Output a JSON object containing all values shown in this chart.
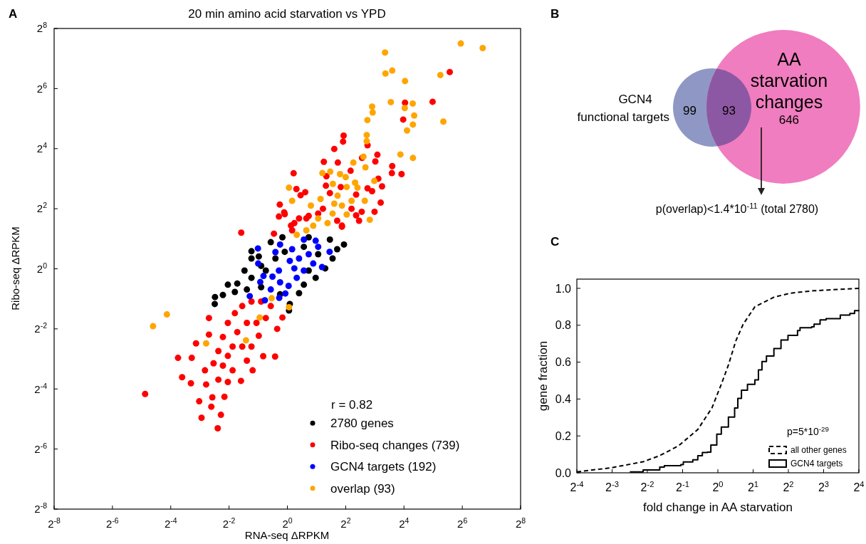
{
  "chart_data": [
    {
      "type": "scatter",
      "title": "20 min amino acid starvation vs YPD",
      "xlabel": "RNA-seq ΔRPKM",
      "ylabel": "Ribo-seq ΔRPKM",
      "annotations": [
        "A",
        "r = 0.82"
      ],
      "log": "xy",
      "marker": "circle",
      "legend": "bottom right",
      "xlim": [
        0.00390625,
        256
      ],
      "ylim": [
        0.00390625,
        256
      ],
      "xticks": [
        {
          "value": 0.00390625,
          "label": "2$^{-8}$"
        },
        {
          "value": 0.015625,
          "label": "2$^{-6}$"
        },
        {
          "value": 0.0625,
          "label": "2$^{-4}$"
        },
        {
          "value": 0.25,
          "label": "2$^{-2}$"
        },
        {
          "value": 1,
          "label": "2$^{0}$"
        },
        {
          "value": 4,
          "label": "2$^{2}$"
        },
        {
          "value": 16,
          "label": "2$^{4}$"
        },
        {
          "value": 64,
          "label": "2$^{6}$"
        },
        {
          "value": 256,
          "label": "2$^{8}$"
        }
      ],
      "yticks": [
        {
          "value": 0.00390625,
          "label": "2$^{-8}$"
        },
        {
          "value": 0.015625,
          "label": "2$^{-6}$"
        },
        {
          "value": 0.0625,
          "label": "2$^{-4}$"
        },
        {
          "value": 0.25,
          "label": "2$^{-2}$"
        },
        {
          "value": 1,
          "label": "2$^{0}$"
        },
        {
          "value": 4,
          "label": "2$^{2}$"
        },
        {
          "value": 16,
          "label": "2$^{4}$"
        },
        {
          "value": 64,
          "label": "2$^{6}$"
        },
        {
          "value": 256,
          "label": "2$^{8}$"
        }
      ],
      "series": [
        {
          "name": "2780 genes",
          "color": "#000000",
          "x": [
            0.179,
            0.178,
            0.216,
            0.243,
            0.304,
            0.361,
            0.426,
            0.507,
            0.674,
            0.889,
            1.66,
            2.75,
            3.27,
            3.84,
            2.93,
            2.46,
            1.96,
            1.48,
            1.32,
            1.06,
            1.04,
            0.841,
            0.536,
            0.426,
            0.599,
            0.753,
            0.536,
            1.66,
            2.08,
            1.48,
            0.94,
            0.382,
            0.287,
            0.426
          ],
          "values": [
            0.521,
            0.444,
            0.547,
            0.693,
            0.712,
            0.959,
            1.5,
            1.33,
            1.85,
            2.07,
            2.07,
            1.96,
            1.57,
            1.75,
            1.27,
            1.01,
            0.812,
            0.693,
            0.57,
            0.444,
            0.382,
            0.555,
            0.655,
            0.812,
            0.959,
            1.27,
            1.07,
            0.959,
            1.4,
            1.66,
            1.48,
            0.62,
            0.586,
            1.27
          ]
        },
        {
          "name": "Ribo-seq changes (739)",
          "color": "#ff0000",
          "x": [
            47.5,
            31.6,
            16.4,
            15.7,
            3.81,
            3.76,
            3.05,
            6.73,
            8.5,
            8.1,
            2.38,
            3.32,
            5.9,
            12.1,
            12,
            15.1,
            1.16,
            4.5,
            2.53,
            8.7,
            9.5,
            2.5,
            1.24,
            1.53,
            1.37,
            6.73,
            7.5,
            2.75,
            3.56,
            9.2,
            0.835,
            0.927,
            0.818,
            7.95,
            5.86,
            5.13,
            5.5,
            0.727,
            3.66,
            1.32,
            1.09,
            1.66,
            2.33,
            4.6,
            5.13,
            0.334,
            0.94,
            0.034,
            0.0743,
            0.0819,
            0.101,
            0.114,
            0.103,
            0.123,
            0.13,
            0.164,
            0.191,
            0.206,
            0.224,
            0.168,
            0.155,
            0.155,
            0.141,
            0.145,
            0.194,
            0.243,
            0.332,
            0.382,
            0.438,
            0.563,
            0.747,
            0.785,
            0.889,
            0.507,
            0.599,
            0.287,
            0.243,
            0.342,
            0.426,
            0.536,
            0.674,
            0.304,
            0.216,
            0.272,
            0.243,
            0.342,
            0.194,
            0.173,
            0.216,
            0.426,
            0.48,
            0.382,
            0.272,
            1.18,
            1.57,
            2.08,
            1.12,
            3.27,
            3.66
          ],
          "values": [
            93.7,
            47.2,
            46.2,
            31.3,
            21.6,
            18.8,
            15.9,
            17.3,
            13.9,
            11.9,
            11.8,
            11.6,
            12.9,
            10.7,
            9.1,
            8.9,
            9.06,
            9.6,
            8.46,
            8,
            6.7,
            6.8,
            6.3,
            5.86,
            5.46,
            6.4,
            6,
            5.74,
            6.6,
            4.6,
            4.4,
            3.68,
            3.34,
            3.73,
            3.73,
            3.43,
            3.03,
            2.25,
            2.64,
            3.2,
            2.71,
            3.39,
            4,
            4,
            5.54,
            2.3,
            3.53,
            0.0556,
            0.128,
            0.0819,
            0.0713,
            0.179,
            0.128,
            0.047,
            0.0321,
            0.0415,
            0.0252,
            0.0344,
            0.0522,
            0.0515,
            0.321,
            0.219,
            0.0961,
            0.0694,
            0.0775,
            0.0733,
            0.0753,
            0.12,
            0.0961,
            0.133,
            0.132,
            0.25,
            0.325,
            0.213,
            0.321,
            0.359,
            0.287,
            0.423,
            0.47,
            0.47,
            0.423,
            0.232,
            0.207,
            0.166,
            0.134,
            0.166,
            0.15,
            0.113,
            0.107,
            0.166,
            0.287,
            0.287,
            0.0961,
            2.87,
            3.2,
            3.58,
            2.43,
            3.03,
            2.71
          ]
        },
        {
          "name": "GCN4 targets (192)",
          "color": "#0000ff",
          "x": [
            0.497,
            0.5,
            0.753,
            0.841,
            0.567,
            0.525,
            0.702,
            0.818,
            0.674,
            0.841,
            1.03,
            0.953,
            0.824,
            0.586,
            0.409,
            1.12,
            1.32,
            1.18,
            1.48,
            1.66,
            1.85,
            2.08,
            2.28,
            2.73,
            1.96,
            1.25,
            1.48,
            1.06
          ],
          "values": [
            1.6,
            1.13,
            1.47,
            1.75,
            0.847,
            0.737,
            0.835,
            0.959,
            0.62,
            0.732,
            0.674,
            0.566,
            0.511,
            0.483,
            0.532,
            1.57,
            1.27,
            1.01,
            0.959,
            1.4,
            1.13,
            1.66,
            1.04,
            1.48,
            1.91,
            0.812,
            1.96,
            1.2
          ]
        },
        {
          "name": "overlap (93)",
          "color": "#ffa500",
          "x": [
            61.8,
            104,
            10.2,
            10.3,
            12.1,
            16.4,
            38,
            11.7,
            19.7,
            16.3,
            7.5,
            7.6,
            20.4,
            6.7,
            19.8,
            40.8,
            17.2,
            6.6,
            6.6,
            14.7,
            19.8,
            6.1,
            4.8,
            6.4,
            2.3,
            2.77,
            3.5,
            4,
            7.9,
            1.04,
            2.95,
            4.1,
            5,
            5.3,
            2.2,
            3.3,
            3.05,
            3.66,
            4.6,
            6.3,
            7.1,
            4.1,
            2.08,
            2.6,
            1.85,
            1.57,
            1.25,
            2.93,
            0.057,
            0.041,
            0.145,
            0.374,
            0.518,
            0.688,
            1.04,
            1.75,
            1.12
          ],
          "values": [
            181,
            163,
            147,
            90.5,
            97,
            76.1,
            87.4,
            46.8,
            45.3,
            40.8,
            42.2,
            36.8,
            34.3,
            30.9,
            27.9,
            29.9,
            24.3,
            21.9,
            19,
            14,
            12.9,
            13.3,
            11.6,
            10.4,
            9.1,
            9.4,
            8.9,
            8.3,
            7.6,
            6.5,
            7.1,
            6.6,
            7.3,
            6.5,
            5,
            5.4,
            4.5,
            4.3,
            4.8,
            4.8,
            3.1,
            3.5,
            3.2,
            2.87,
            2.7,
            2.43,
            2.19,
            3.58,
            0.349,
            0.266,
            0.179,
            0.192,
            0.325,
            0.507,
            0.412,
            4.3,
            4.8
          ]
        }
      ]
    },
    {
      "type": "other",
      "annotations": [
        "B",
        "p(overlap)<1.4*10$^{-11}$ (total 2780)"
      ],
      "categories": [
        "GCN4 functional targets",
        null,
        "AA starvation changes"
      ],
      "data_labels": true,
      "values": [
        99,
        93,
        646
      ],
      "colors": [
        "#8f98c4",
        "#8d58a3",
        "#f07dbf"
      ]
    },
    {
      "type": "step",
      "xlabel": "fold change in AA starvation",
      "ylabel": "gene fraction",
      "annotations": [
        "C",
        "p=5*10$^{-29}$"
      ],
      "log": "x",
      "legend": "bottom right",
      "xlim": [
        0.0625,
        16
      ],
      "ylim": [
        0,
        1.05
      ],
      "xticks": [
        {
          "value": 0.0625,
          "label": "2$^{-4}$"
        },
        {
          "value": 0.125,
          "label": "2$^{-3}$"
        },
        {
          "value": 0.25,
          "label": "2$^{-2}$"
        },
        {
          "value": 0.5,
          "label": "2$^{-1}$"
        },
        {
          "value": 1,
          "label": "2$^{0}$"
        },
        {
          "value": 2,
          "label": "2$^{1}$"
        },
        {
          "value": 4,
          "label": "2$^{2}$"
        },
        {
          "value": 8,
          "label": "2$^{3}$"
        },
        {
          "value": 16,
          "label": "2$^{4}$"
        }
      ],
      "yticks": [
        {
          "value": 0,
          "label": "0.0"
        },
        {
          "value": 0.2,
          "label": "0.2"
        },
        {
          "value": 0.4,
          "label": "0.4"
        },
        {
          "value": 0.6,
          "label": "0.6"
        },
        {
          "value": 0.8,
          "label": "0.8"
        },
        {
          "value": 1,
          "label": "1.0"
        }
      ],
      "series": [
        {
          "name": "all other genes",
          "type": "line",
          "line_style": "dashed",
          "color": "#000000",
          "x": [
            0.0625,
            0.125,
            0.23,
            0.319,
            0.463,
            0.674,
            0.889,
            1.07,
            1.23,
            1.42,
            1.64,
            2.07,
            3.01,
            4.17,
            6.63,
            16
          ],
          "values": [
            0.005,
            0.028,
            0.06,
            0.093,
            0.147,
            0.235,
            0.351,
            0.48,
            0.584,
            0.713,
            0.804,
            0.9,
            0.952,
            0.974,
            0.987,
            1.0
          ]
        },
        {
          "name": "GCN4 targets",
          "type": "step",
          "line_style": "solid",
          "color": "#000000",
          "x": [
            0.177,
            0.23,
            0.319,
            0.349,
            0.483,
            0.507,
            0.611,
            0.674,
            0.737,
            0.812,
            0.871,
            0.979,
            1.07,
            1.23,
            1.39,
            1.48,
            1.59,
            1.79,
            2.07,
            2.22,
            2.38,
            2.6,
            3.01,
            3.46,
            3.97,
            4.79,
            5.03,
            6.32,
            6.63,
            7.46,
            8.4,
            11.1,
            13.4,
            14.7,
            16
          ],
          "values": [
            0.005,
            0.015,
            0.031,
            0.039,
            0.044,
            0.059,
            0.07,
            0.093,
            0.11,
            0.112,
            0.151,
            0.209,
            0.248,
            0.302,
            0.351,
            0.403,
            0.448,
            0.48,
            0.504,
            0.558,
            0.603,
            0.633,
            0.674,
            0.72,
            0.745,
            0.771,
            0.787,
            0.791,
            0.806,
            0.829,
            0.836,
            0.855,
            0.864,
            0.879,
            0.881
          ]
        }
      ]
    }
  ]
}
